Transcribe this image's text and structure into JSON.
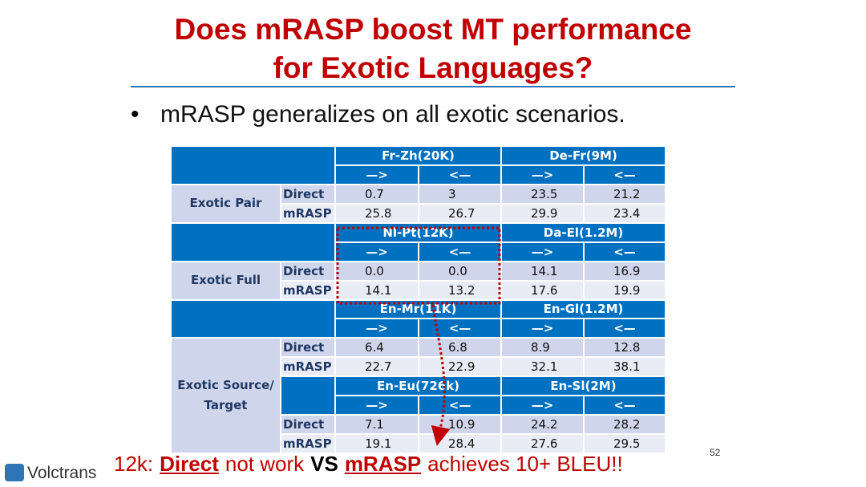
{
  "title_lines": [
    "Does mRASP boost MT performance",
    "for Exotic Languages?"
  ],
  "bullet": "mRASP generalizes on all exotic scenarios.",
  "table": {
    "groups": [
      {
        "label": "Exotic Pair",
        "sections": [
          {
            "pairs": [
              "Fr-Zh(20K)",
              "De-Fr(9M)"
            ],
            "directions": [
              "—>",
              "<—",
              "—>",
              "<—"
            ],
            "rows": [
              [
                "Direct",
                "0.7",
                "3",
                "23.5",
                "21.2"
              ],
              [
                "mRASP",
                "25.8",
                "26.7",
                "29.9",
                "23.4"
              ]
            ]
          }
        ]
      },
      {
        "label": "Exotic Full",
        "sections": [
          {
            "pairs": [
              "Nl-Pt(12K)",
              "Da-El(1.2M)"
            ],
            "directions": [
              "—>",
              "<—",
              "—>",
              "<—"
            ],
            "rows": [
              [
                "Direct",
                "0.0",
                "0.0",
                "14.1",
                "16.9"
              ],
              [
                "mRASP",
                "14.1",
                "13.2",
                "17.6",
                "19.9"
              ]
            ]
          }
        ]
      },
      {
        "label": "Exotic Source/ Target",
        "sections": [
          {
            "pairs": [
              "En-Mr(11K)",
              "En-Gl(1.2M)"
            ],
            "directions": [
              "—>",
              "<—",
              "—>",
              "<—"
            ],
            "rows": [
              [
                "Direct",
                "6.4",
                "6.8",
                "8.9",
                "12.8"
              ],
              [
                "mRASP",
                "22.7",
                "22.9",
                "32.1",
                "38.1"
              ]
            ]
          },
          {
            "pairs": [
              "En-Eu(726k)",
              "En-Sl(2M)"
            ],
            "directions": [
              "—>",
              "<—",
              "—>",
              "<—"
            ],
            "rows": [
              [
                "Direct",
                "7.1",
                "10.9",
                "24.2",
                "28.2"
              ],
              [
                "mRASP",
                "19.1",
                "28.4",
                "27.6",
                "29.5"
              ]
            ]
          }
        ]
      }
    ]
  },
  "caption": [
    "12k:",
    "Direct",
    "not work",
    "VS",
    "mRASP",
    "achieves 10+ BLEU!!"
  ],
  "page_number": "52",
  "logo": "Volctrans"
}
